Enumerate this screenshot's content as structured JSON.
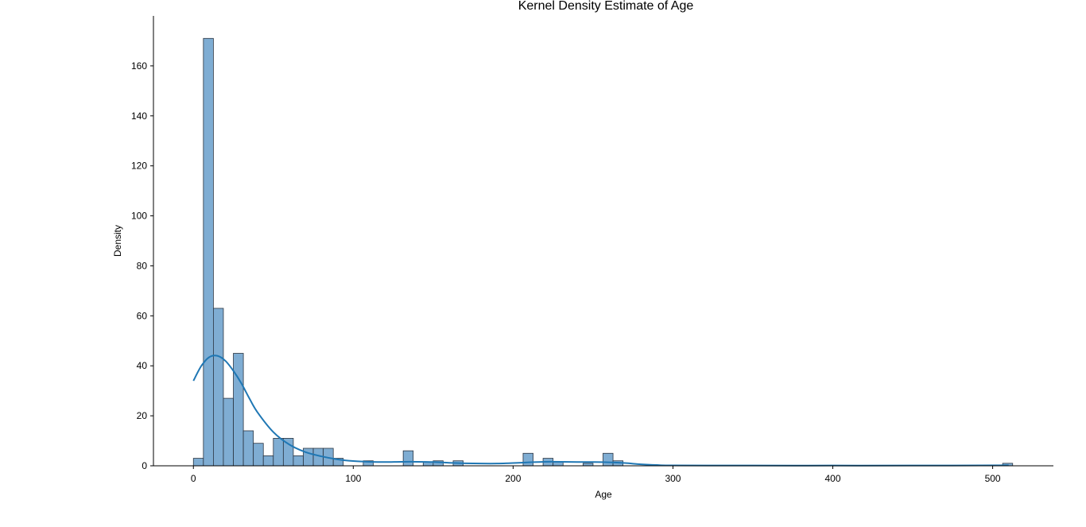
{
  "chart_data": {
    "type": "bar",
    "title": "Kernel Density Estimate of Age",
    "xlabel": "Age",
    "ylabel": "Density",
    "xlim": [
      -25,
      538
    ],
    "ylim": [
      0,
      180
    ],
    "xticks": [
      0,
      100,
      200,
      300,
      400,
      500
    ],
    "yticks": [
      0,
      20,
      40,
      60,
      80,
      100,
      120,
      140,
      160
    ],
    "bin_width": 6.25,
    "histogram": {
      "bin_starts": [
        0,
        6.25,
        12.5,
        18.75,
        25,
        31.25,
        37.5,
        43.75,
        50,
        56.25,
        62.5,
        68.75,
        75,
        81.25,
        87.5,
        106.25,
        131.25,
        143.75,
        150,
        162.5,
        206.25,
        218.75,
        225,
        243.75,
        256.25,
        262.5,
        506.25
      ],
      "counts": [
        3,
        171,
        63,
        27,
        45,
        14,
        9,
        4,
        11,
        11,
        4,
        7,
        7,
        7,
        3,
        2,
        6,
        1.5,
        2,
        2,
        5,
        3,
        1.5,
        1,
        5,
        2,
        1
      ]
    },
    "kde_curve": {
      "x": [
        0,
        5,
        10,
        15,
        20,
        25,
        30,
        35,
        40,
        50,
        60,
        70,
        80,
        90,
        100,
        110,
        120,
        130,
        140,
        150,
        160,
        170,
        180,
        190,
        200,
        210,
        220,
        230,
        240,
        250,
        260,
        270,
        280,
        290,
        300,
        350,
        400,
        450,
        510
      ],
      "y": [
        34,
        40,
        43.5,
        44,
        42,
        38,
        33,
        27,
        21.5,
        13.5,
        8.5,
        5.5,
        3.8,
        2.6,
        1.9,
        1.6,
        1.5,
        1.6,
        1.6,
        1.5,
        1.2,
        1.0,
        0.9,
        0.9,
        1.1,
        1.4,
        1.6,
        1.6,
        1.5,
        1.5,
        1.4,
        1.1,
        0.6,
        0.3,
        0.15,
        0.1,
        0.1,
        0.1,
        0.2
      ]
    },
    "colors": {
      "bar_fill": "#7fadd3",
      "bar_edge": "#2b3440",
      "kde_line": "#1f77b4"
    },
    "grid": false
  }
}
